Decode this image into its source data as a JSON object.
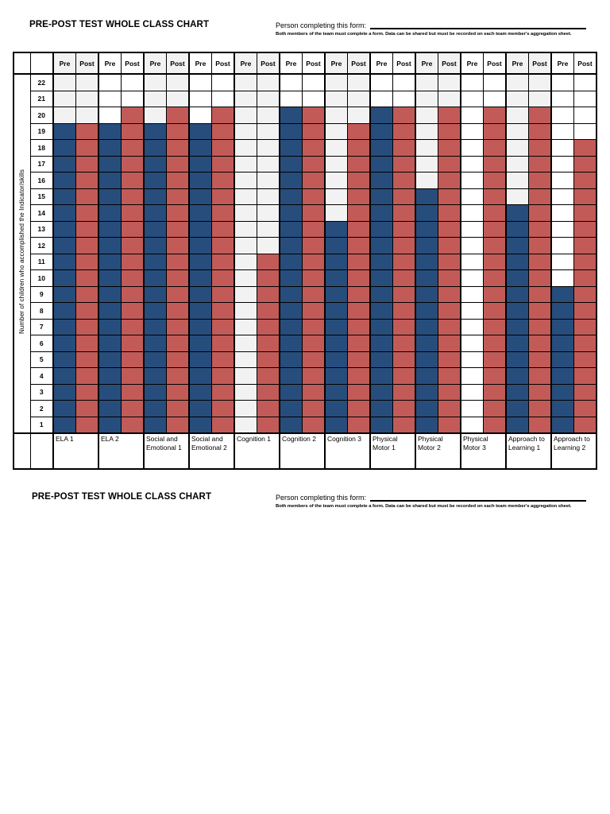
{
  "header": {
    "title": "PRE-POST TEST WHOLE CLASS CHART",
    "form_label": "Person completing this form:",
    "form_note": "Both members of the team must complete a form.  Data can be shared but must be recorded on each team member's aggregation sheet."
  },
  "chart_data": {
    "type": "bar",
    "title": "PRE-POST TEST WHOLE CLASS CHART",
    "ylabel": "Number of children who accomplished the Indicator/skills",
    "ylim": [
      1,
      22
    ],
    "grid": true,
    "legend": "none",
    "column_headers": [
      "Pre",
      "Post"
    ],
    "categories": [
      "ELA 1",
      "ELA 2",
      "Social and Emotional 1",
      "Social and Emotional 2",
      "Cognition 1",
      "Cognition 2",
      "Cognition 3",
      "Physical Motor 1",
      "Physical Motor 2",
      "Physical Motor 3",
      "Approach to Learning 1",
      "Approach to Learning 2"
    ],
    "series": [
      {
        "name": "Pre",
        "color": "#274D7C",
        "values": [
          19,
          19,
          19,
          19,
          0,
          20,
          13,
          20,
          15,
          0,
          14,
          9
        ]
      },
      {
        "name": "Post",
        "color": "#C25B57",
        "values": [
          19,
          20,
          20,
          20,
          11,
          20,
          19,
          20,
          20,
          20,
          20,
          18
        ]
      }
    ],
    "empty_cell_colors": {
      "odd_pair": "#F2F2F2",
      "even_pair": "#FFFFFF"
    },
    "grid_color": "#000000"
  }
}
